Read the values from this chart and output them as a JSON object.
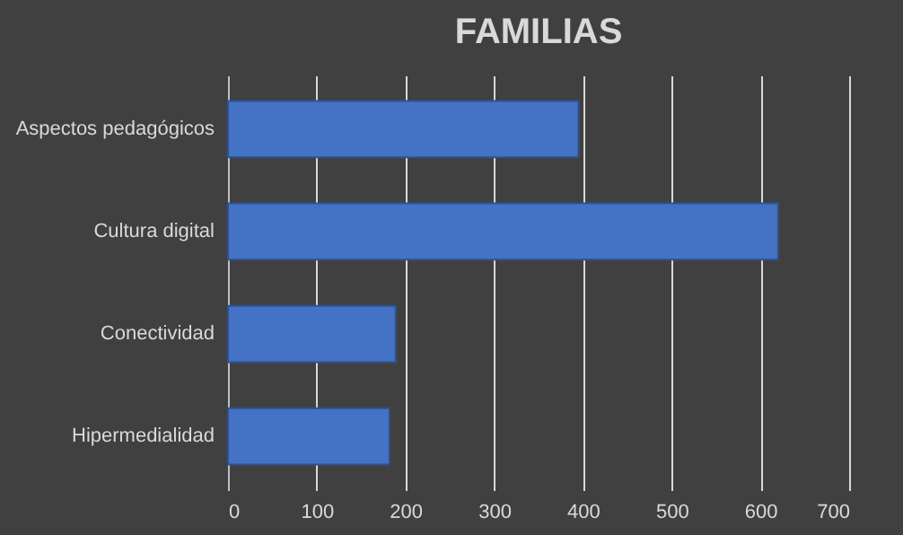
{
  "chart_data": {
    "type": "bar",
    "orientation": "horizontal",
    "title": "FAMILIAS",
    "categories": [
      "Aspectos pedagógicos",
      "Cultura digital",
      "Conectividad",
      "Hipermedialidad"
    ],
    "values": [
      395,
      620,
      189,
      182
    ],
    "color": "#4472c4",
    "xlim": [
      0,
      700
    ],
    "xticks": [
      0,
      100,
      200,
      300,
      400,
      500,
      600,
      700
    ],
    "grid": "x"
  }
}
